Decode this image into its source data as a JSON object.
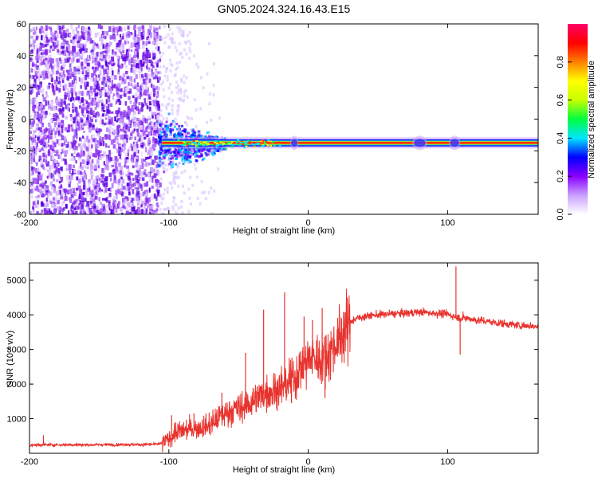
{
  "title": "GN05.2024.324.16.43.E15",
  "chart_data": [
    {
      "type": "heatmap",
      "xlabel": "Height of straight line (km)",
      "ylabel": "Frequency (Hz)",
      "xlim": [
        -200,
        165
      ],
      "ylim": [
        -60,
        60
      ],
      "xticks": [
        -200,
        -100,
        0,
        100
      ],
      "yticks": [
        -60,
        -40,
        -20,
        0,
        20,
        40,
        60
      ],
      "colorbar": {
        "label": "Normalized spectral amplitude",
        "range": [
          0,
          1
        ],
        "ticks": [
          0.0,
          0.2,
          0.4,
          0.6,
          0.8
        ],
        "stops": [
          "#ffffff",
          "#c9a0ff",
          "#8800ff",
          "#0000ff",
          "#00e5ff",
          "#00ff40",
          "#c8ff00",
          "#ffff00",
          "#ff8000",
          "#ff0000",
          "#ff0066"
        ]
      },
      "features": {
        "noise_region_x": [
          -200,
          -107
        ],
        "carrier_frequency_hz": -15,
        "carrier_start_x": -105,
        "carrier_end_x": 165,
        "wideband_burst_x": [
          -108,
          -60
        ],
        "wideband_burst_frequency_range_hz": [
          -30,
          5
        ],
        "color_noise": "#7b1fe0",
        "color_carrier_core": "#ff0000",
        "color_carrier_glow": "#00e0c0",
        "color_carrier_edge": "#1a1aff"
      }
    },
    {
      "type": "line",
      "xlabel": "Height of straight line (km)",
      "ylabel": "SNR (10 * v/v)",
      "xlim": [
        -200,
        165
      ],
      "ylim": [
        0,
        5500
      ],
      "xticks": [
        -200,
        -100,
        0,
        100
      ],
      "yticks": [
        1000,
        2000,
        3000,
        4000,
        5000
      ],
      "line_color": "#e8332e",
      "series": [
        {
          "points": [
            [
              -200,
              230
            ],
            [
              -190,
              250
            ],
            [
              -180,
              240
            ],
            [
              -170,
              250
            ],
            [
              -160,
              245
            ],
            [
              -150,
              250
            ],
            [
              -140,
              245
            ],
            [
              -130,
              255
            ],
            [
              -120,
              250
            ],
            [
              -110,
              260
            ],
            [
              -105,
              280
            ],
            [
              -100,
              420
            ],
            [
              -95,
              600
            ],
            [
              -90,
              650
            ],
            [
              -85,
              700
            ],
            [
              -80,
              720
            ],
            [
              -75,
              760
            ],
            [
              -70,
              820
            ],
            [
              -65,
              1000
            ],
            [
              -60,
              1150
            ],
            [
              -55,
              1250
            ],
            [
              -50,
              1300
            ],
            [
              -45,
              1380
            ],
            [
              -40,
              1500
            ],
            [
              -35,
              1650
            ],
            [
              -30,
              1750
            ],
            [
              -25,
              1800
            ],
            [
              -20,
              1900
            ],
            [
              -15,
              2000
            ],
            [
              -10,
              2200
            ],
            [
              -5,
              2500
            ],
            [
              0,
              2700
            ],
            [
              5,
              2750
            ],
            [
              10,
              2700
            ],
            [
              15,
              2900
            ],
            [
              20,
              3200
            ],
            [
              25,
              3500
            ],
            [
              30,
              3800
            ],
            [
              35,
              3900
            ],
            [
              40,
              3950
            ],
            [
              50,
              4000
            ],
            [
              60,
              4030
            ],
            [
              70,
              4050
            ],
            [
              80,
              4080
            ],
            [
              90,
              4050
            ],
            [
              100,
              4020
            ],
            [
              105,
              3950
            ],
            [
              110,
              3900
            ],
            [
              115,
              3900
            ],
            [
              120,
              3850
            ],
            [
              130,
              3800
            ],
            [
              140,
              3750
            ],
            [
              150,
              3700
            ],
            [
              160,
              3680
            ],
            [
              165,
              3650
            ]
          ]
        }
      ],
      "spikes": [
        [
          -190,
          520
        ],
        [
          -98,
          1100
        ],
        [
          -82,
          1150
        ],
        [
          -62,
          1750
        ],
        [
          -45,
          2900
        ],
        [
          -32,
          4150
        ],
        [
          -17,
          4650
        ],
        [
          -12,
          1450
        ],
        [
          -3,
          3950
        ],
        [
          3,
          3850
        ],
        [
          10,
          4200
        ],
        [
          12,
          1600
        ],
        [
          17,
          3000
        ],
        [
          106,
          5400
        ],
        [
          109,
          2850
        ],
        [
          111,
          4100
        ]
      ]
    }
  ]
}
